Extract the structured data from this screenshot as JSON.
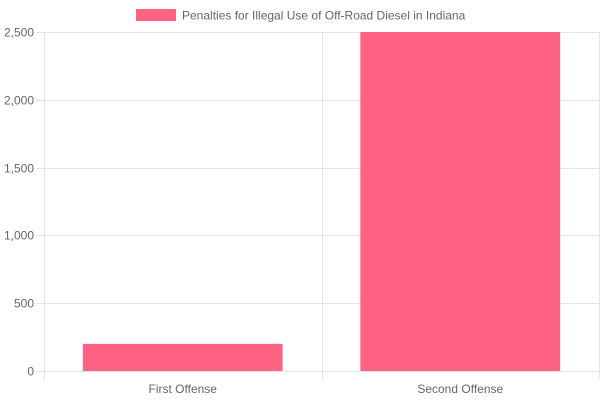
{
  "chart_data": {
    "type": "bar",
    "categories": [
      "First Offense",
      "Second Offense"
    ],
    "series": [
      {
        "name": "Penalties for Illegal Use of Off-Road Diesel in Indiana",
        "values": [
          200,
          2500
        ]
      }
    ],
    "y_ticks": [
      "0",
      "500",
      "1,000",
      "1,500",
      "2,000",
      "2,500"
    ],
    "ylim": [
      0,
      2500
    ],
    "grid": true,
    "legend_position": "top",
    "colors": {
      "bar_fill": "#ff6384",
      "grid": "#e5e5e5",
      "axis_text": "#666666"
    }
  }
}
